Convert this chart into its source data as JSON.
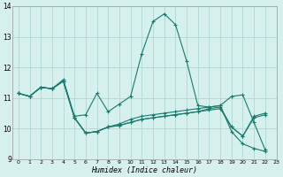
{
  "xlabel": "Humidex (Indice chaleur)",
  "bg_color": "#d6f0ee",
  "line_color": "#1a7a6e",
  "grid_color": "#b0d8d4",
  "xlim": [
    -0.5,
    23
  ],
  "ylim": [
    9,
    14
  ],
  "xticks": [
    0,
    1,
    2,
    3,
    4,
    5,
    6,
    7,
    8,
    9,
    10,
    11,
    12,
    13,
    14,
    15,
    16,
    17,
    18,
    19,
    20,
    21,
    22,
    23
  ],
  "yticks": [
    9,
    10,
    11,
    12,
    13,
    14
  ],
  "series": [
    {
      "x": [
        0,
        1,
        2,
        3,
        4,
        5,
        6,
        7,
        8,
        9,
        10,
        11,
        12,
        13,
        14,
        15,
        16,
        17,
        18,
        19,
        20,
        21,
        22
      ],
      "y": [
        11.15,
        11.05,
        11.35,
        11.3,
        11.6,
        10.4,
        10.45,
        11.15,
        10.55,
        10.8,
        11.05,
        12.45,
        13.5,
        13.75,
        13.4,
        12.2,
        10.75,
        10.7,
        10.75,
        11.05,
        11.1,
        10.2,
        9.3
      ]
    },
    {
      "x": [
        0,
        1,
        2,
        3,
        4,
        5,
        6,
        7,
        8,
        9,
        10,
        11,
        12,
        13,
        14,
        15,
        16,
        17,
        18,
        19,
        20,
        21,
        22
      ],
      "y": [
        11.15,
        11.05,
        11.35,
        11.3,
        11.55,
        10.35,
        9.85,
        9.9,
        10.05,
        10.1,
        10.2,
        10.3,
        10.35,
        10.4,
        10.45,
        10.5,
        10.55,
        10.6,
        10.65,
        10.05,
        9.75,
        10.4,
        10.5
      ]
    },
    {
      "x": [
        0,
        1,
        2,
        3,
        4,
        5,
        6,
        7,
        8,
        9,
        10,
        11,
        12,
        13,
        14,
        15,
        16,
        17,
        18,
        19,
        20,
        21,
        22
      ],
      "y": [
        11.15,
        11.05,
        11.35,
        11.3,
        11.55,
        10.35,
        9.85,
        9.9,
        10.05,
        10.15,
        10.3,
        10.4,
        10.45,
        10.5,
        10.55,
        10.6,
        10.65,
        10.7,
        10.75,
        9.9,
        9.5,
        9.35,
        9.25
      ]
    },
    {
      "x": [
        0,
        1,
        2,
        3,
        4,
        5,
        6,
        7,
        8,
        9,
        10,
        11,
        12,
        13,
        14,
        15,
        16,
        17,
        18,
        19,
        20,
        21,
        22
      ],
      "y": [
        11.15,
        11.05,
        11.35,
        11.3,
        11.55,
        10.35,
        9.85,
        9.9,
        10.05,
        10.1,
        10.2,
        10.3,
        10.35,
        10.4,
        10.45,
        10.5,
        10.55,
        10.65,
        10.7,
        10.05,
        9.75,
        10.35,
        10.45
      ]
    }
  ]
}
